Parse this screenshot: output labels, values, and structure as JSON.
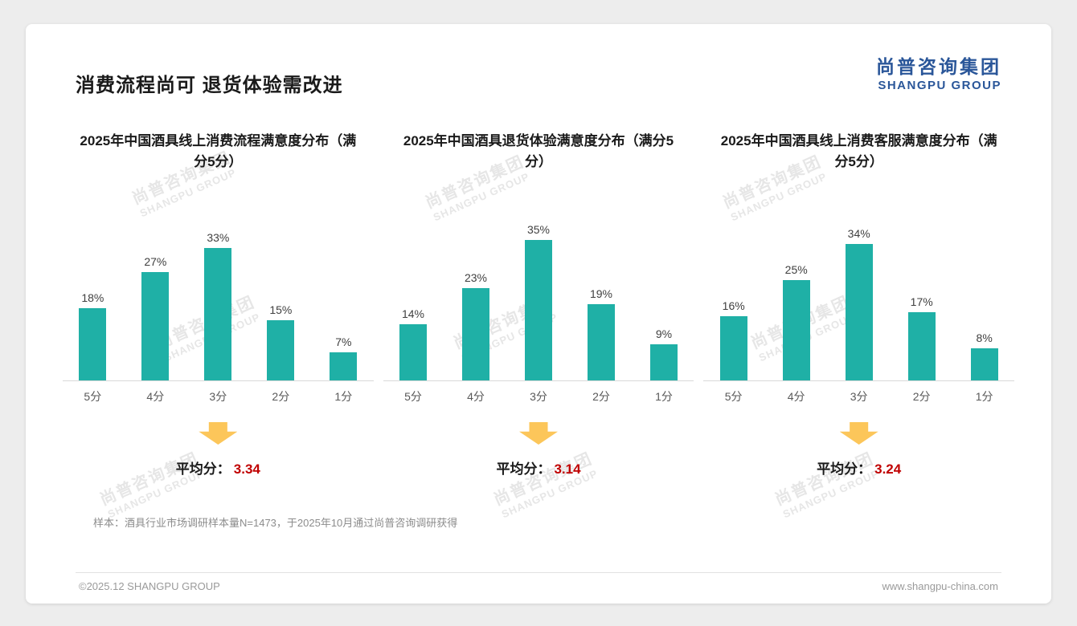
{
  "page": {
    "title": "消费流程尚可 退货体验需改进",
    "logo_cn": "尚普咨询集团",
    "logo_en": "SHANGPU GROUP",
    "watermark_cn": "尚普咨询集团",
    "watermark_en": "SHANGPU GROUP",
    "avg_label": "平均分：",
    "sample_note": "样本：酒具行业市场调研样本量N=1473，于2025年10月通过尚普咨询调研获得",
    "footer_left": "©2025.12 SHANGPU GROUP",
    "footer_right": "www.shangpu-china.com"
  },
  "colors": {
    "bar": "#1FB0A6",
    "arrow": "#FCC65A",
    "avg_value": "#C00000",
    "logo_blue": "#2A5699"
  },
  "chart_data": [
    {
      "type": "bar",
      "title": "2025年中国酒具线上消费流程满意度分布（满分5分）",
      "categories": [
        "5分",
        "4分",
        "3分",
        "2分",
        "1分"
      ],
      "values": [
        18,
        27,
        33,
        15,
        7
      ],
      "unit": "%",
      "ylim": [
        0,
        40
      ],
      "grid": false,
      "average": "3.34"
    },
    {
      "type": "bar",
      "title": "2025年中国酒具退货体验满意度分布（满分5分）",
      "categories": [
        "5分",
        "4分",
        "3分",
        "2分",
        "1分"
      ],
      "values": [
        14,
        23,
        35,
        19,
        9
      ],
      "unit": "%",
      "ylim": [
        0,
        40
      ],
      "grid": false,
      "average": "3.14"
    },
    {
      "type": "bar",
      "title": "2025年中国酒具线上消费客服满意度分布（满分5分）",
      "categories": [
        "5分",
        "4分",
        "3分",
        "2分",
        "1分"
      ],
      "values": [
        16,
        25,
        34,
        17,
        8
      ],
      "unit": "%",
      "ylim": [
        0,
        40
      ],
      "grid": false,
      "average": "3.24"
    }
  ]
}
